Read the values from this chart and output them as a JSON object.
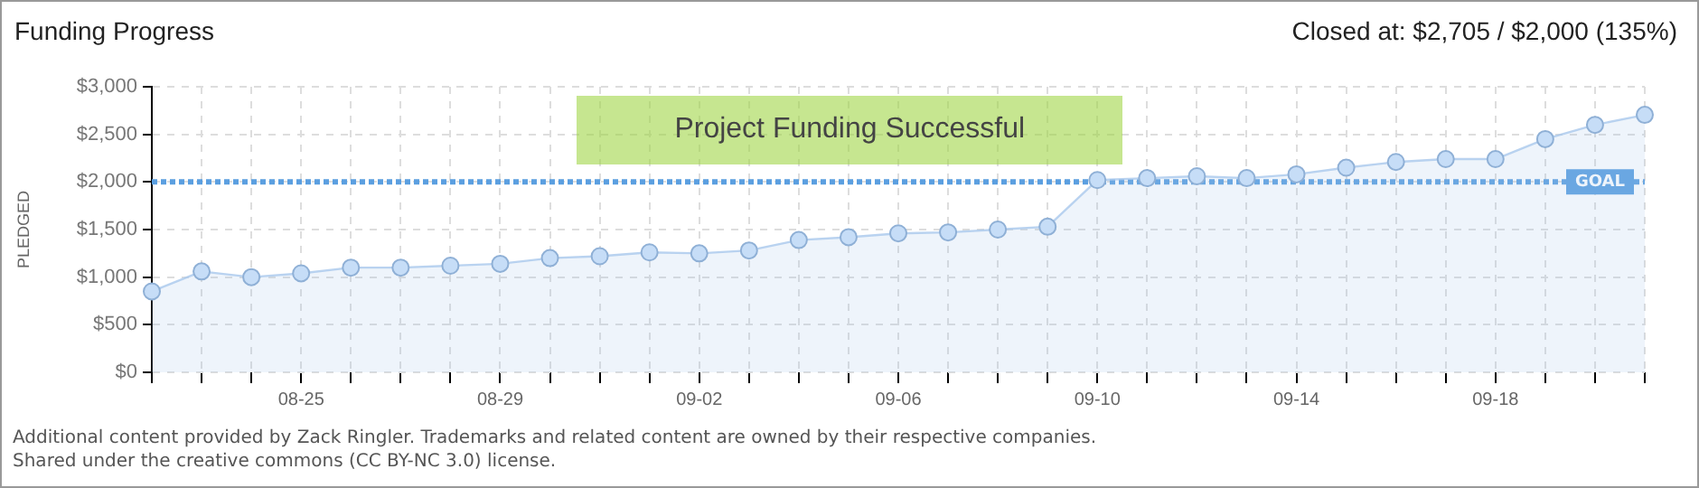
{
  "chart_data": {
    "type": "area",
    "title": "Funding Progress",
    "subtitle": "Closed at: $2,705 / $2,000 (135%)",
    "ylabel": "PLEDGED",
    "categories": [
      null,
      null,
      null,
      "08-25",
      null,
      null,
      null,
      "08-29",
      null,
      null,
      null,
      "09-02",
      null,
      null,
      null,
      "09-06",
      null,
      null,
      null,
      "09-10",
      null,
      null,
      null,
      "09-14",
      null,
      null,
      null,
      "09-18",
      null,
      null,
      null
    ],
    "values": [
      850,
      1060,
      1000,
      1040,
      1100,
      1100,
      1120,
      1140,
      1200,
      1220,
      1260,
      1250,
      1280,
      1390,
      1420,
      1460,
      1470,
      1500,
      1530,
      2020,
      2040,
      2060,
      2040,
      2080,
      2150,
      2210,
      2240,
      2240,
      2450,
      2600,
      2705
    ],
    "color": "#a9c8ec",
    "marker": "circle",
    "grid": true,
    "ylim": [
      0,
      3000
    ],
    "yticks": [
      {
        "value": 0,
        "label": "$0"
      },
      {
        "value": 500,
        "label": "$500"
      },
      {
        "value": 1000,
        "label": "$1,000"
      },
      {
        "value": 1500,
        "label": "$1,500"
      },
      {
        "value": 2000,
        "label": "$2,000"
      },
      {
        "value": 2500,
        "label": "$2,500"
      },
      {
        "value": 3000,
        "label": "$3,000"
      }
    ],
    "ref_lines": [
      {
        "axis": "y",
        "value": 2000,
        "label": "GOAL",
        "color": "#5b9fe0",
        "line_style": "dotted"
      }
    ],
    "annotations": [
      "Project Funding Successful",
      "Additional content provided by Zack Ringler. Trademarks and related content are owned by their respective companies.",
      "Shared under the creative commons (CC BY-NC 3.0) license."
    ]
  }
}
